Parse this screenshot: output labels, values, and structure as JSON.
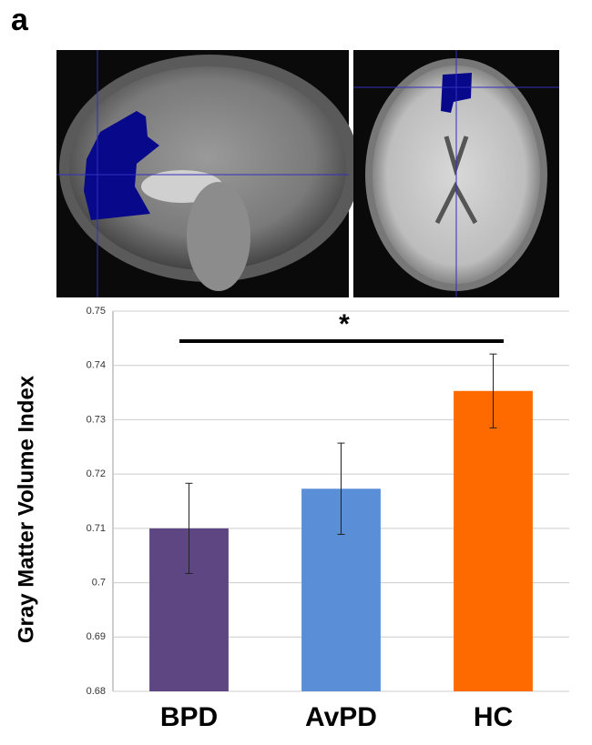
{
  "panel_label": "a",
  "chart_data": {
    "type": "bar",
    "ylabel": "Gray Matter Volume Index",
    "annotation": "*",
    "categories": [
      "BPD",
      "AvPD",
      "HC"
    ],
    "values": [
      0.71,
      0.7173,
      0.7353
    ],
    "errors": [
      0.0083,
      0.0084,
      0.0068
    ],
    "colors": [
      "#5e4683",
      "#5a8fd8",
      "#ff6a00"
    ],
    "ylim": [
      0.68,
      0.75
    ],
    "yticks": [
      0.68,
      0.69,
      0.7,
      0.71,
      0.72,
      0.73,
      0.74,
      0.75
    ],
    "grid": true
  }
}
